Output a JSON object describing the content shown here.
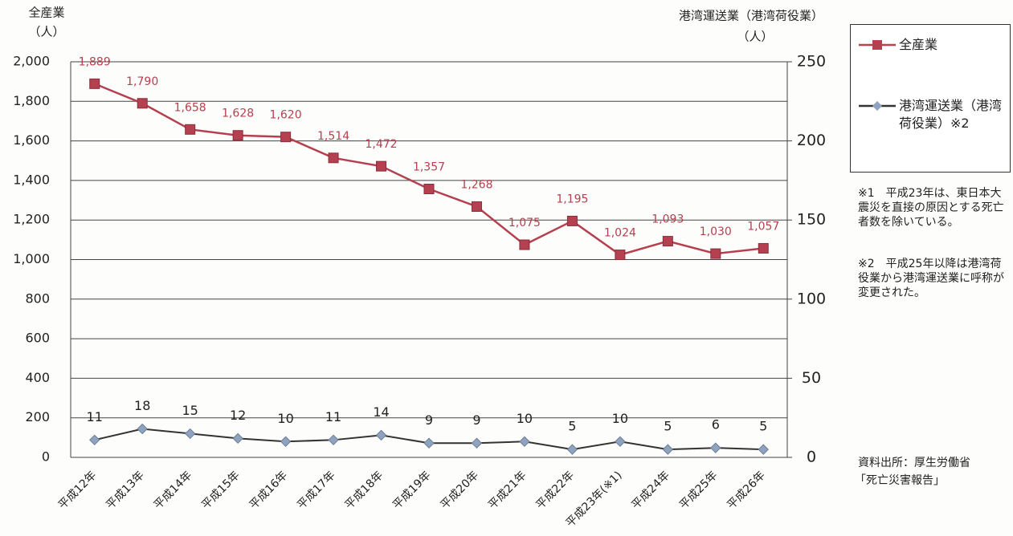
{
  "chart_data": {
    "type": "line",
    "ylabel": "全産業",
    "yunit": "（人）",
    "y2label": "港湾運送業（港湾荷役業）",
    "y2unit": "（人）",
    "categories": [
      "平成12年",
      "平成13年",
      "平成14年",
      "平成15年",
      "平成16年",
      "平成17年",
      "平成18年",
      "平成19年",
      "平成20年",
      "平成21年",
      "平成22年",
      "平成23年(※1)",
      "平成24年",
      "平成25年",
      "平成26年"
    ],
    "series": [
      {
        "name": "全産業",
        "color": "#b5404f",
        "values": [
          1889,
          1790,
          1658,
          1628,
          1620,
          1514,
          1472,
          1357,
          1268,
          1075,
          1195,
          1024,
          1093,
          1030,
          1057
        ],
        "value_labels": [
          "1,889",
          "1,790",
          "1,658",
          "1,628",
          "1,620",
          "1,514",
          "1,472",
          "1,357",
          "1,268",
          "1,075",
          "1,195",
          "1,024",
          "1,093",
          "1,030",
          "1,057"
        ]
      },
      {
        "name": "港湾運送業（港湾荷役業）※2",
        "color": "#8fa3bf",
        "axis": "y2",
        "values": [
          11,
          18,
          15,
          12,
          10,
          11,
          14,
          9,
          9,
          10,
          5,
          10,
          5,
          6,
          5
        ]
      }
    ],
    "ylim": [
      0,
      2000
    ],
    "yticks": [
      0,
      200,
      400,
      600,
      800,
      {
        "value": 1000,
        "label": "1,000"
      },
      {
        "value": 1200,
        "label": "1,200"
      },
      {
        "value": 1400,
        "label": "1,400"
      },
      {
        "value": 1600,
        "label": "1,600"
      },
      {
        "value": 1800,
        "label": "1,800"
      },
      {
        "value": 2000,
        "label": "2,000"
      }
    ],
    "y2lim": [
      0,
      250
    ],
    "y2ticks": [
      0,
      50,
      100,
      150,
      200,
      250
    ],
    "grid": true,
    "notes": [
      "※1　平成23年は、東日本大震災を直接の原因とする死亡者数を除いている。",
      "※2　平成25年以降は港湾荷役業から港湾運送業に呼称が変更された。"
    ],
    "source": [
      "資料出所：厚生労働省",
      "「死亡災害報告」"
    ]
  }
}
